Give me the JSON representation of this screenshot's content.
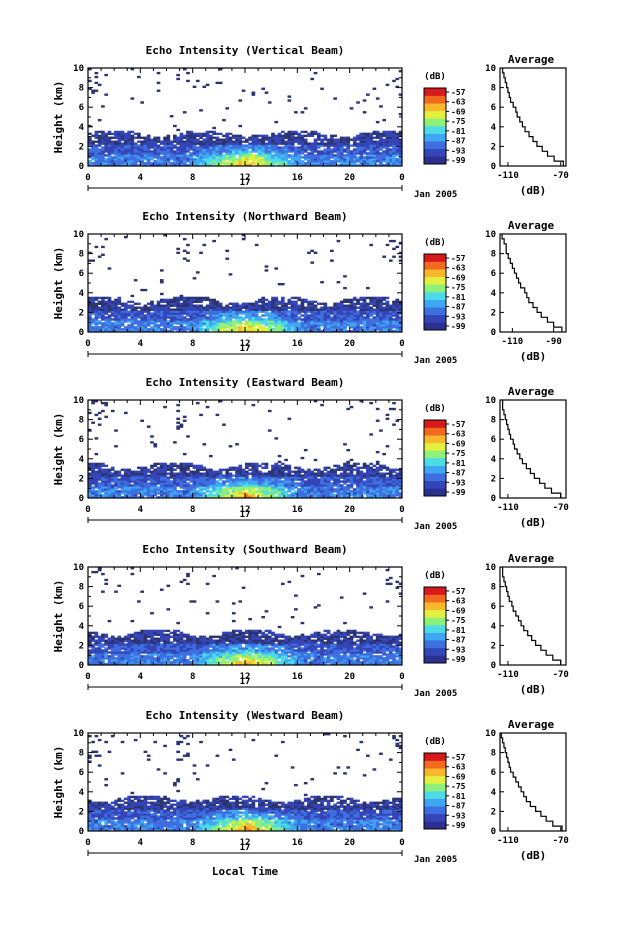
{
  "chart_data": [
    {
      "type": "heatmap",
      "title": "Echo Intensity (Vertical Beam)",
      "ylabel": "Height (km)",
      "xticks": [
        "0",
        "4",
        "8",
        "12",
        "16",
        "20",
        "0"
      ],
      "yticks": [
        "0",
        "2",
        "4",
        "6",
        "8",
        "10"
      ],
      "xlim": [
        0,
        24
      ],
      "ylim": [
        0,
        10
      ],
      "date_label": "17",
      "month_label": "Jan 2005",
      "colorbar": {
        "title": "(dB)",
        "ticks": [
          "-57",
          "-63",
          "-69",
          "-75",
          "-81",
          "-87",
          "-93",
          "-99"
        ]
      },
      "profile": {
        "title": "Average",
        "xlabel": "(dB)",
        "xticks": [
          "-110",
          "-70"
        ],
        "yticks": [
          "0",
          "2",
          "4",
          "6",
          "8",
          "10"
        ],
        "xlim": [
          -116,
          -66
        ],
        "ylim": [
          0,
          10
        ],
        "height": [
          0,
          0.5,
          1,
          1.5,
          2,
          2.5,
          3,
          3.5,
          4,
          4.5,
          5,
          5.5,
          6,
          6.5,
          7,
          7.5,
          8,
          8.5,
          9,
          9.5
        ],
        "value": [
          -68,
          -75,
          -80,
          -84,
          -88,
          -91,
          -94,
          -97,
          -99,
          -101,
          -103,
          -104,
          -106,
          -108,
          -109,
          -110,
          -111,
          -112,
          -113,
          -114
        ]
      }
    },
    {
      "type": "heatmap",
      "title": "Echo Intensity (Northward Beam)",
      "ylabel": "Height (km)",
      "xticks": [
        "0",
        "4",
        "8",
        "12",
        "16",
        "20",
        "0"
      ],
      "yticks": [
        "0",
        "2",
        "4",
        "6",
        "8",
        "10"
      ],
      "xlim": [
        0,
        24
      ],
      "ylim": [
        0,
        10
      ],
      "date_label": "17",
      "month_label": "Jan 2005",
      "colorbar": {
        "title": "(dB)",
        "ticks": [
          "-57",
          "-63",
          "-69",
          "-75",
          "-81",
          "-87",
          "-93",
          "-99"
        ]
      },
      "profile": {
        "title": "Average",
        "xlabel": "(dB)",
        "xticks": [
          "-110",
          "-90"
        ],
        "yticks": [
          "0",
          "2",
          "4",
          "6",
          "8",
          "10"
        ],
        "xlim": [
          -116,
          -84
        ],
        "ylim": [
          0,
          10
        ],
        "height": [
          0,
          0.5,
          1,
          1.5,
          2,
          2.5,
          3,
          3.5,
          4,
          4.5,
          5,
          5.5,
          6,
          6.5,
          7,
          7.5,
          8,
          8.5,
          9,
          9.5
        ],
        "value": [
          -86,
          -90,
          -93,
          -96,
          -98,
          -100,
          -102,
          -103,
          -104,
          -106,
          -107,
          -108,
          -109,
          -110,
          -111,
          -112,
          -113,
          -113,
          -114,
          -115
        ]
      }
    },
    {
      "type": "heatmap",
      "title": "Echo Intensity (Eastward Beam)",
      "ylabel": "Height (km)",
      "xticks": [
        "0",
        "4",
        "8",
        "12",
        "16",
        "20",
        "0"
      ],
      "yticks": [
        "0",
        "2",
        "4",
        "6",
        "8",
        "10"
      ],
      "xlim": [
        0,
        24
      ],
      "ylim": [
        0,
        10
      ],
      "date_label": "17",
      "month_label": "Jan 2005",
      "colorbar": {
        "title": "(dB)",
        "ticks": [
          "-57",
          "-63",
          "-69",
          "-75",
          "-81",
          "-87",
          "-93",
          "-99"
        ]
      },
      "profile": {
        "title": "Average",
        "xlabel": "(dB)",
        "xticks": [
          "-110",
          "-70"
        ],
        "yticks": [
          "0",
          "2",
          "4",
          "6",
          "8",
          "10"
        ],
        "xlim": [
          -116,
          -66
        ],
        "ylim": [
          0,
          10
        ],
        "height": [
          0,
          0.5,
          1,
          1.5,
          2,
          2.5,
          3,
          3.5,
          4,
          4.5,
          5,
          5.5,
          6,
          6.5,
          7,
          7.5,
          8,
          8.5,
          9,
          9.5
        ],
        "value": [
          -70,
          -77,
          -82,
          -86,
          -90,
          -93,
          -96,
          -99,
          -101,
          -103,
          -105,
          -106,
          -108,
          -109,
          -110,
          -111,
          -112,
          -113,
          -114,
          -114
        ]
      }
    },
    {
      "type": "heatmap",
      "title": "Echo Intensity (Southward Beam)",
      "ylabel": "Height (km)",
      "xticks": [
        "0",
        "4",
        "8",
        "12",
        "16",
        "20",
        "0"
      ],
      "yticks": [
        "0",
        "2",
        "4",
        "6",
        "8",
        "10"
      ],
      "xlim": [
        0,
        24
      ],
      "ylim": [
        0,
        10
      ],
      "date_label": "17",
      "month_label": "Jan 2005",
      "colorbar": {
        "title": "(dB)",
        "ticks": [
          "-57",
          "-63",
          "-69",
          "-75",
          "-81",
          "-87",
          "-93",
          "-99"
        ]
      },
      "profile": {
        "title": "Average",
        "xlabel": "(dB)",
        "xticks": [
          "-110",
          "-70"
        ],
        "yticks": [
          "0",
          "2",
          "4",
          "6",
          "8",
          "10"
        ],
        "xlim": [
          -116,
          -66
        ],
        "ylim": [
          0,
          10
        ],
        "height": [
          0,
          0.5,
          1,
          1.5,
          2,
          2.5,
          3,
          3.5,
          4,
          4.5,
          5,
          5.5,
          6,
          6.5,
          7,
          7.5,
          8,
          8.5,
          9,
          9.5
        ],
        "value": [
          -70,
          -76,
          -81,
          -85,
          -89,
          -92,
          -95,
          -98,
          -100,
          -102,
          -104,
          -106,
          -107,
          -109,
          -110,
          -111,
          -112,
          -113,
          -114,
          -114
        ]
      }
    },
    {
      "type": "heatmap",
      "title": "Echo Intensity (Westward Beam)",
      "ylabel": "Height (km)",
      "xlabel": "Local Time",
      "xticks": [
        "0",
        "4",
        "8",
        "12",
        "16",
        "20",
        "0"
      ],
      "yticks": [
        "0",
        "2",
        "4",
        "6",
        "8",
        "10"
      ],
      "xlim": [
        0,
        24
      ],
      "ylim": [
        0,
        10
      ],
      "date_label": "17",
      "month_label": "Jan 2005",
      "colorbar": {
        "title": "(dB)",
        "ticks": [
          "-57",
          "-63",
          "-69",
          "-75",
          "-81",
          "-87",
          "-93",
          "-99"
        ]
      },
      "profile": {
        "title": "Average",
        "xlabel": "(dB)",
        "xticks": [
          "-110",
          "-70"
        ],
        "yticks": [
          "0",
          "2",
          "4",
          "6",
          "8",
          "10"
        ],
        "xlim": [
          -116,
          -66
        ],
        "ylim": [
          0,
          10
        ],
        "height": [
          0,
          0.5,
          1,
          1.5,
          2,
          2.5,
          3,
          3.5,
          4,
          4.5,
          5,
          5.5,
          6,
          6.5,
          7,
          7.5,
          8,
          8.5,
          9,
          9.5
        ],
        "value": [
          -69,
          -76,
          -81,
          -85,
          -89,
          -93,
          -96,
          -98,
          -100,
          -102,
          -104,
          -106,
          -108,
          -109,
          -110,
          -111,
          -112,
          -113,
          -114,
          -115
        ]
      }
    }
  ],
  "colors": {
    "colormap": [
      "#2b2f8f",
      "#3445b8",
      "#3e6fe0",
      "#3fa6f2",
      "#4ddbe8",
      "#8cf07a",
      "#e4f040",
      "#f9b72c",
      "#f26a1e",
      "#d7191c"
    ],
    "lowest_echo": "#2c3470"
  }
}
